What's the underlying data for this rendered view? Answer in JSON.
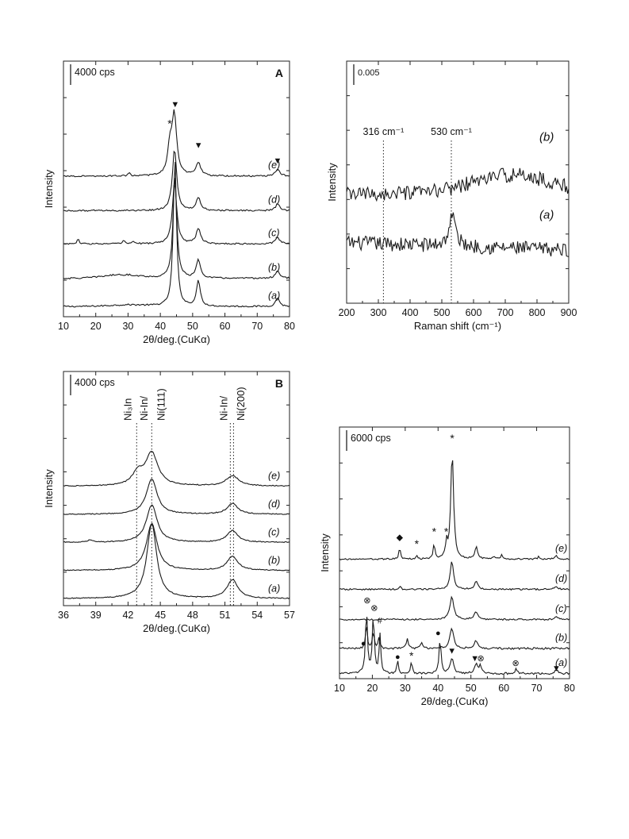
{
  "chart_data": [
    {
      "id": "A",
      "type": "line",
      "panel_label": "A",
      "xlabel": "2θ/deg.(CuKα)",
      "ylabel": "Intensity",
      "xlim": [
        10,
        80
      ],
      "x_ticks": [
        "10",
        "20",
        "30",
        "40",
        "50",
        "60",
        "70",
        "80"
      ],
      "scale_bar": "4000 cps",
      "series": [
        {
          "name": "(a)",
          "baseline": 0.04,
          "noise": 0.003,
          "peaks": [
            [
              44.5,
              0.58,
              0.6
            ],
            [
              51.8,
              0.1,
              0.7
            ],
            [
              76.3,
              0.035,
              0.7
            ]
          ],
          "humps": [
            [
              30,
              0.006,
              8
            ]
          ]
        },
        {
          "name": "(b)",
          "baseline": 0.15,
          "noise": 0.003,
          "peaks": [
            [
              44.5,
              0.4,
              0.7
            ],
            [
              51.8,
              0.07,
              0.8
            ],
            [
              76.3,
              0.03,
              0.8
            ]
          ],
          "humps": [
            [
              28,
              0.014,
              8
            ]
          ]
        },
        {
          "name": "(c)",
          "baseline": 0.285,
          "noise": 0.003,
          "peaks": [
            [
              44.4,
              0.24,
              0.8
            ],
            [
              51.8,
              0.06,
              0.8
            ],
            [
              76.3,
              0.025,
              0.8
            ],
            [
              14.5,
              0.022,
              0.3
            ],
            [
              28.6,
              0.012,
              0.4
            ],
            [
              31.5,
              0.01,
              0.4
            ]
          ],
          "humps": []
        },
        {
          "name": "(d)",
          "baseline": 0.415,
          "noise": 0.003,
          "peaks": [
            [
              44.4,
              0.24,
              0.8
            ],
            [
              51.8,
              0.05,
              0.8
            ],
            [
              76.3,
              0.025,
              0.8
            ]
          ],
          "humps": []
        },
        {
          "name": "(e)",
          "baseline": 0.55,
          "noise": 0.003,
          "peaks": [
            [
              44.3,
              0.24,
              0.9
            ],
            [
              42.9,
              0.1,
              0.7
            ],
            [
              51.8,
              0.05,
              0.9
            ],
            [
              76.3,
              0.025,
              0.9
            ],
            [
              30.3,
              0.01,
              0.5
            ]
          ],
          "humps": []
        }
      ],
      "markers": [
        {
          "symbol": "▼",
          "x": 44.6,
          "y": 0.82
        },
        {
          "symbol": "*",
          "x": 42.9,
          "y": 0.74
        },
        {
          "symbol": "▼",
          "x": 51.8,
          "y": 0.66
        },
        {
          "symbol": "▼",
          "x": 76.3,
          "y": 0.6
        }
      ]
    },
    {
      "id": "R",
      "type": "line",
      "panel_label": "",
      "xlabel": "Raman shift (cm⁻¹)",
      "ylabel": "Intensity",
      "xlim": [
        200,
        900
      ],
      "x_ticks": [
        "200",
        "300",
        "400",
        "500",
        "600",
        "700",
        "800",
        "900"
      ],
      "scale_bar": "0.005",
      "series": [
        {
          "name": "(a)",
          "baseline": 0.25,
          "noise": 0.03,
          "peaks": [
            [
              533,
              0.13,
              12
            ]
          ],
          "humps": [],
          "slope": -0.06
        },
        {
          "name": "(b)",
          "baseline": 0.45,
          "noise": 0.03,
          "peaks": [],
          "humps": [
            [
              720,
              0.08,
              180
            ]
          ]
        }
      ],
      "ref_lines": [
        {
          "x": 316,
          "label": "316 cm⁻¹"
        },
        {
          "x": 530,
          "label": "530 cm⁻¹"
        }
      ]
    },
    {
      "id": "B",
      "type": "line",
      "panel_label": "B",
      "xlabel": "2θ/deg.(CuKα)",
      "ylabel": "Intensity",
      "xlim": [
        36,
        57
      ],
      "x_ticks": [
        "36",
        "39",
        "42",
        "45",
        "48",
        "51",
        "54",
        "57"
      ],
      "scale_bar": "4000 cps",
      "series": [
        {
          "name": "(a)",
          "baseline": 0.03,
          "noise": 0.002,
          "peaks": [
            [
              44.2,
              0.32,
              0.55
            ],
            [
              51.7,
              0.08,
              0.6
            ]
          ],
          "humps": []
        },
        {
          "name": "(b)",
          "baseline": 0.15,
          "noise": 0.002,
          "peaks": [
            [
              44.2,
              0.2,
              0.6
            ],
            [
              51.7,
              0.06,
              0.6
            ]
          ],
          "humps": []
        },
        {
          "name": "(c)",
          "baseline": 0.27,
          "noise": 0.002,
          "peaks": [
            [
              44.2,
              0.16,
              0.6
            ],
            [
              51.7,
              0.05,
              0.6
            ],
            [
              38.5,
              0.01,
              0.3
            ]
          ],
          "humps": []
        },
        {
          "name": "(d)",
          "baseline": 0.39,
          "noise": 0.002,
          "peaks": [
            [
              44.2,
              0.15,
              0.6
            ],
            [
              51.7,
              0.045,
              0.6
            ]
          ],
          "humps": []
        },
        {
          "name": "(e)",
          "baseline": 0.51,
          "noise": 0.002,
          "peaks": [
            [
              44.2,
              0.14,
              0.7
            ],
            [
              42.9,
              0.05,
              0.6
            ],
            [
              51.7,
              0.045,
              0.7
            ]
          ],
          "humps": []
        }
      ],
      "ref_lines": [
        {
          "x": 42.8,
          "label": ""
        },
        {
          "x": 44.2,
          "label": ""
        },
        {
          "x": 51.5,
          "label": ""
        },
        {
          "x": 51.8,
          "label": ""
        }
      ],
      "phase_labels": [
        {
          "text": "Ni₃In",
          "x": 42.3
        },
        {
          "text": "Ni-In/",
          "x": 43.8
        },
        {
          "text": "Ni(111)",
          "x": 45.4
        },
        {
          "text": "Ni-In/",
          "x": 51.2
        },
        {
          "text": "Ni(200)",
          "x": 52.8
        }
      ]
    },
    {
      "id": "C",
      "type": "line",
      "panel_label": "",
      "xlabel": "2θ/deg.(CuKα)",
      "ylabel": "Intensity",
      "xlim": [
        10,
        80
      ],
      "x_ticks": [
        "10",
        "20",
        "30",
        "40",
        "50",
        "60",
        "70",
        "80"
      ],
      "scale_bar": "6000 cps",
      "series": [
        {
          "name": "(a)",
          "baseline": 0.02,
          "noise": 0.004,
          "peaks": [
            [
              18.2,
              0.25,
              0.35
            ],
            [
              20.3,
              0.23,
              0.35
            ],
            [
              22.3,
              0.16,
              0.3
            ],
            [
              27.7,
              0.05,
              0.3
            ],
            [
              31.9,
              0.05,
              0.3
            ],
            [
              40.6,
              0.14,
              0.35
            ],
            [
              44.2,
              0.06,
              0.6
            ],
            [
              51.6,
              0.035,
              0.6
            ],
            [
              52.8,
              0.03,
              0.4
            ],
            [
              63.8,
              0.02,
              0.4
            ],
            [
              76.0,
              0.015,
              0.5
            ]
          ],
          "humps": []
        },
        {
          "name": "(b)",
          "baseline": 0.12,
          "noise": 0.004,
          "peaks": [
            [
              18.2,
              0.1,
              0.3
            ],
            [
              20.3,
              0.07,
              0.3
            ],
            [
              22.0,
              0.045,
              0.3
            ],
            [
              30.6,
              0.04,
              0.35
            ],
            [
              35.0,
              0.02,
              0.4
            ],
            [
              44.2,
              0.08,
              0.7
            ],
            [
              51.5,
              0.03,
              0.6
            ]
          ],
          "humps": []
        },
        {
          "name": "(c)",
          "baseline": 0.235,
          "noise": 0.003,
          "peaks": [
            [
              44.2,
              0.09,
              0.7
            ],
            [
              51.6,
              0.03,
              0.7
            ],
            [
              76.0,
              0.01,
              0.6
            ]
          ],
          "humps": []
        },
        {
          "name": "(d)",
          "baseline": 0.355,
          "noise": 0.003,
          "peaks": [
            [
              44.2,
              0.11,
              0.6
            ],
            [
              51.6,
              0.03,
              0.6
            ],
            [
              28.5,
              0.01,
              0.3
            ],
            [
              76.0,
              0.01,
              0.6
            ]
          ],
          "humps": []
        },
        {
          "name": "(e)",
          "baseline": 0.475,
          "noise": 0.003,
          "peaks": [
            [
              44.3,
              0.43,
              0.5
            ],
            [
              28.3,
              0.045,
              0.3
            ],
            [
              33.5,
              0.015,
              0.3
            ],
            [
              38.8,
              0.06,
              0.3
            ],
            [
              42.6,
              0.06,
              0.35
            ],
            [
              51.6,
              0.05,
              0.5
            ],
            [
              57.0,
              0.012,
              0.3
            ],
            [
              59.3,
              0.015,
              0.3
            ],
            [
              70.6,
              0.012,
              0.3
            ],
            [
              76.0,
              0.015,
              0.4
            ]
          ],
          "humps": []
        }
      ],
      "markers": [
        {
          "symbol": "*",
          "x": 44.3,
          "y": 0.94
        },
        {
          "symbol": "◆",
          "x": 28.3,
          "y": 0.55
        },
        {
          "symbol": "*",
          "x": 33.5,
          "y": 0.52
        },
        {
          "symbol": "*",
          "x": 38.8,
          "y": 0.57
        },
        {
          "symbol": "*",
          "x": 42.5,
          "y": 0.57
        },
        {
          "symbol": "⊗",
          "x": 18.4,
          "y": 0.3
        },
        {
          "symbol": "⊗",
          "x": 20.6,
          "y": 0.27
        },
        {
          "symbol": "#",
          "x": 22.3,
          "y": 0.22
        },
        {
          "symbol": "●",
          "x": 17.3,
          "y": 0.13
        },
        {
          "symbol": "●",
          "x": 27.7,
          "y": 0.075
        },
        {
          "symbol": "*",
          "x": 31.9,
          "y": 0.075
        },
        {
          "symbol": "●",
          "x": 40.0,
          "y": 0.17
        },
        {
          "symbol": "▼",
          "x": 44.2,
          "y": 0.1
        },
        {
          "symbol": "▼",
          "x": 51.2,
          "y": 0.07
        },
        {
          "symbol": "⊗",
          "x": 53.0,
          "y": 0.07
        },
        {
          "symbol": "⊗",
          "x": 63.6,
          "y": 0.05
        },
        {
          "symbol": "▼",
          "x": 76.0,
          "y": 0.03
        }
      ]
    }
  ]
}
